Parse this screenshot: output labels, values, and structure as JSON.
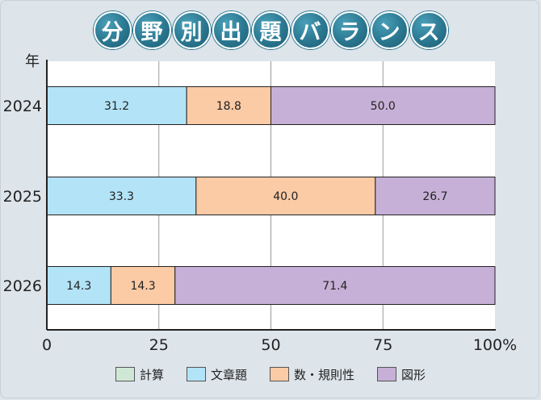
{
  "title_chars": [
    "分",
    "野",
    "別",
    "出",
    "題",
    "バ",
    "ラ",
    "ン",
    "ス"
  ],
  "colors": {
    "計算": "#cfe8d5",
    "文章題": "#b3e3f7",
    "数・規則性": "#fbcba6",
    "図形": "#c7b0d7"
  },
  "chart_data": {
    "type": "bar",
    "orientation": "horizontal",
    "stacked": true,
    "ylabel": "年",
    "categories": [
      "2024",
      "2025",
      "2026"
    ],
    "series": [
      {
        "name": "計算",
        "values": [
          0,
          0,
          0
        ]
      },
      {
        "name": "文章題",
        "values": [
          31.2,
          33.3,
          14.3
        ]
      },
      {
        "name": "数・規則性",
        "values": [
          18.8,
          40.0,
          14.3
        ]
      },
      {
        "name": "図形",
        "values": [
          50.0,
          26.7,
          71.4
        ]
      }
    ],
    "data_labels": [
      [
        "",
        "31.2",
        "18.8",
        "50.0"
      ],
      [
        "",
        "33.3",
        "40.0",
        "26.7"
      ],
      [
        "",
        "14.3",
        "14.3",
        "71.4"
      ]
    ],
    "xlim": [
      0,
      100
    ],
    "xticks": [
      "0",
      "25",
      "50",
      "75",
      "100%"
    ],
    "grid": true,
    "legend_position": "bottom"
  }
}
